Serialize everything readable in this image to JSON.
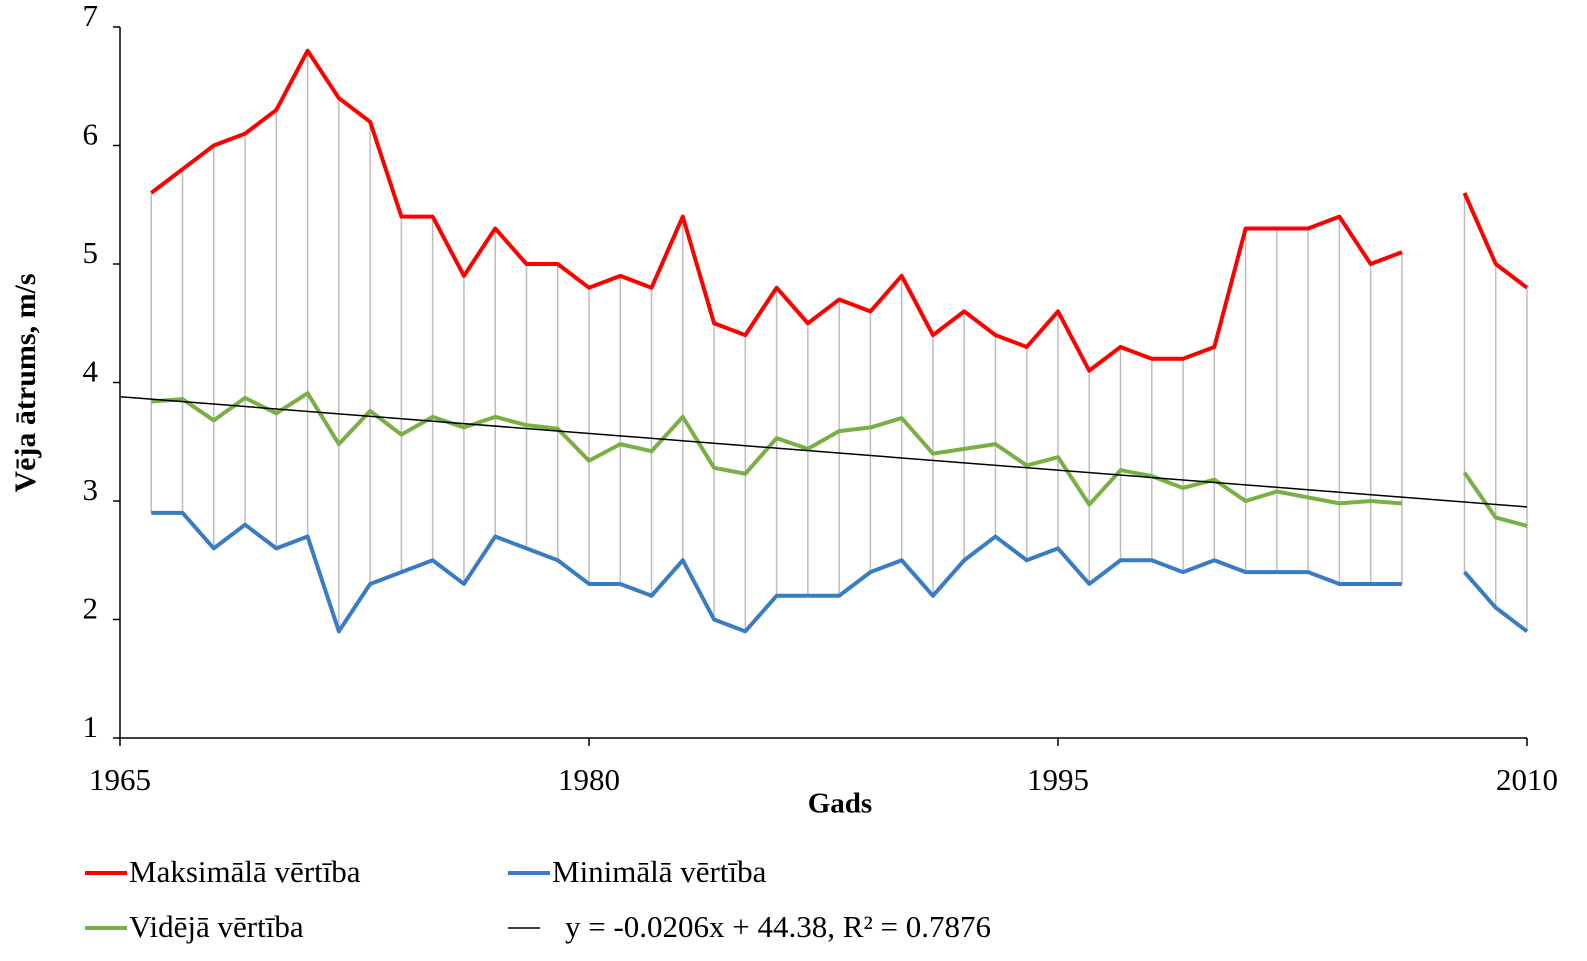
{
  "chart_data": {
    "type": "line",
    "y_label": "Vēja ātrums, m/s",
    "x_label": "Gads",
    "xlim": [
      1965,
      2010
    ],
    "xticks": [
      1965,
      1980,
      1995,
      2010
    ],
    "ylim": [
      1,
      7
    ],
    "yticks": [
      1,
      2,
      3,
      4,
      5,
      6,
      7
    ],
    "grid": false,
    "high_low_lines": true,
    "high_low_color": "#bdbdbd",
    "legend": "bottom",
    "x": [
      1966,
      1967,
      1968,
      1969,
      1970,
      1971,
      1972,
      1973,
      1974,
      1975,
      1976,
      1977,
      1978,
      1979,
      1980,
      1981,
      1982,
      1983,
      1984,
      1985,
      1986,
      1987,
      1988,
      1989,
      1990,
      1991,
      1992,
      1993,
      1994,
      1995,
      1996,
      1997,
      1998,
      1999,
      2000,
      2001,
      2002,
      2003,
      2004,
      2005,
      2006,
      2007,
      2008,
      2009,
      2010
    ],
    "series": [
      {
        "name": "Maksimālā vērtība",
        "color": "#ff0000",
        "values": [
          5.6,
          5.8,
          6.0,
          6.1,
          6.3,
          6.8,
          6.4,
          6.2,
          5.4,
          5.4,
          4.9,
          5.3,
          5.0,
          5.0,
          4.8,
          4.9,
          4.8,
          5.4,
          4.5,
          4.4,
          4.8,
          4.5,
          4.7,
          4.6,
          4.9,
          4.4,
          4.6,
          4.4,
          4.3,
          4.6,
          4.1,
          4.3,
          4.2,
          4.2,
          4.3,
          5.3,
          5.3,
          5.3,
          5.4,
          5.0,
          5.1,
          null,
          5.6,
          5.0,
          4.8
        ]
      },
      {
        "name": "Minimālā vērtība",
        "color": "#3a7cc2",
        "values": [
          2.9,
          2.9,
          2.6,
          2.8,
          2.6,
          2.7,
          1.9,
          2.3,
          2.4,
          2.5,
          2.3,
          2.7,
          2.6,
          2.5,
          2.3,
          2.3,
          2.2,
          2.5,
          2.0,
          1.9,
          2.2,
          2.2,
          2.2,
          2.4,
          2.5,
          2.2,
          2.5,
          2.7,
          2.5,
          2.6,
          2.3,
          2.5,
          2.5,
          2.4,
          2.5,
          2.4,
          2.4,
          2.4,
          2.3,
          2.3,
          2.3,
          null,
          2.4,
          2.1,
          1.9
        ]
      },
      {
        "name": "Vidējā vērtība",
        "color": "#78b043",
        "values": [
          3.84,
          3.86,
          3.68,
          3.87,
          3.74,
          3.91,
          3.48,
          3.76,
          3.56,
          3.71,
          3.62,
          3.71,
          3.64,
          3.61,
          3.34,
          3.48,
          3.42,
          3.71,
          3.28,
          3.23,
          3.53,
          3.44,
          3.59,
          3.62,
          3.7,
          3.4,
          3.44,
          3.48,
          3.3,
          3.37,
          2.97,
          3.26,
          3.21,
          3.11,
          3.18,
          3.0,
          3.08,
          3.03,
          2.98,
          3.0,
          2.98,
          null,
          3.24,
          2.86,
          2.79
        ]
      },
      {
        "name": "y = -0.0206x + 44.38, R² = 0.7876",
        "color": "#000000",
        "width": 1.5,
        "x": [
          1965,
          2010
        ],
        "values": [
          3.88,
          2.95
        ]
      }
    ]
  }
}
